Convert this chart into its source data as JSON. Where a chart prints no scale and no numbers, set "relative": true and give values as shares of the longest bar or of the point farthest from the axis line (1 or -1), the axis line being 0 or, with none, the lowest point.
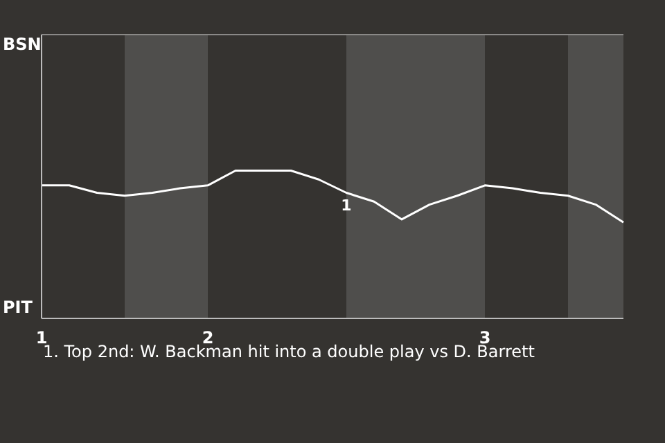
{
  "chart_data": {
    "type": "line",
    "relative": true,
    "categories": [
      "1",
      null,
      null,
      null,
      null,
      null,
      "2",
      null,
      null,
      null,
      null,
      null,
      null,
      null,
      null,
      null,
      "3",
      null,
      null,
      null,
      null,
      null
    ],
    "series": [
      {
        "color": "#ffffff",
        "values": [
          0.9,
          0.9,
          0.85,
          0.83,
          0.85,
          0.88,
          0.9,
          1,
          1,
          1,
          0.94,
          0.85,
          0.79,
          0.67,
          0.77,
          0.83,
          0.9,
          0.88,
          0.85,
          0.83,
          0.77,
          0.65
        ]
      }
    ],
    "marker": "none",
    "line_style": "solid",
    "annotations": [
      "1",
      "PIT",
      "BSN",
      "1. Top 2nd: W. Backman hit into a double play vs D. Barrett"
    ]
  }
}
